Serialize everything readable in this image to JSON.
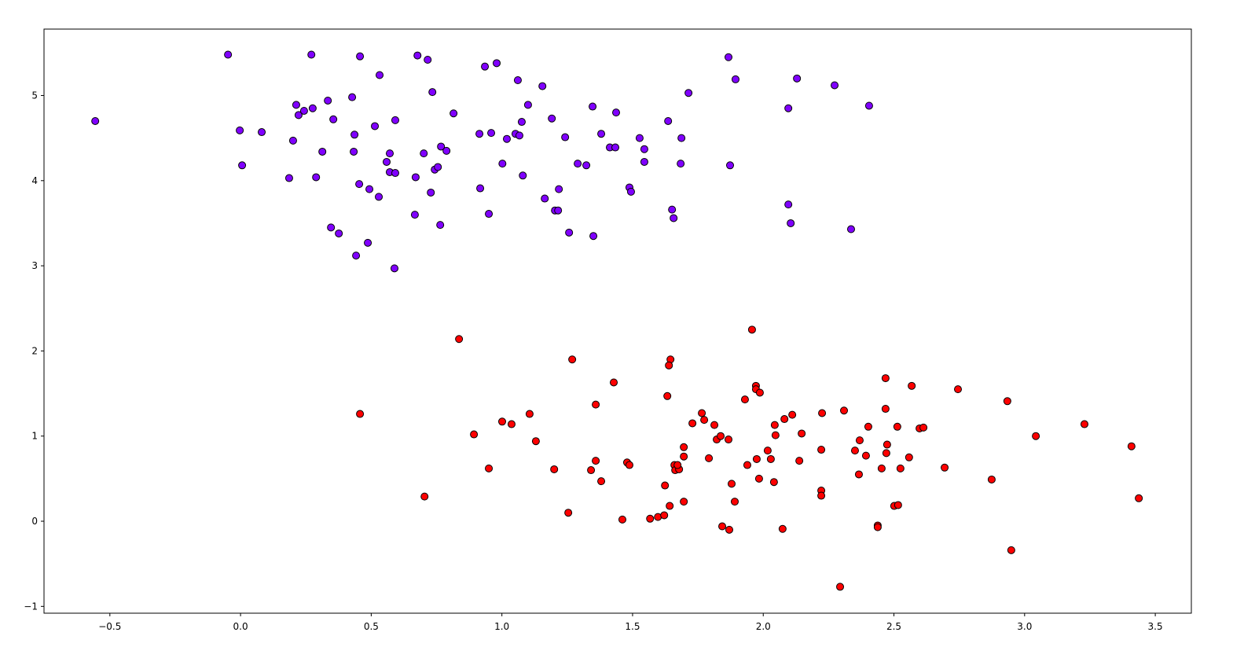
{
  "chart_data": {
    "type": "scatter",
    "xlim": [
      -0.752,
      3.638
    ],
    "ylim": [
      -1.08,
      5.78
    ],
    "xticks": [
      {
        "value": -0.5,
        "label": "−0.5"
      },
      {
        "value": 0.0,
        "label": "0.0"
      },
      {
        "value": 0.5,
        "label": "0.5"
      },
      {
        "value": 1.0,
        "label": "1.0"
      },
      {
        "value": 1.5,
        "label": "1.5"
      },
      {
        "value": 2.0,
        "label": "2.0"
      },
      {
        "value": 2.5,
        "label": "2.5"
      },
      {
        "value": 3.0,
        "label": "3.0"
      },
      {
        "value": 3.5,
        "label": "3.5"
      }
    ],
    "yticks": [
      {
        "value": -1,
        "label": "−1"
      },
      0,
      1,
      2,
      3,
      4,
      5
    ],
    "series": [
      {
        "color": "#8000ff",
        "x": [
          -0.556,
          -0.048,
          0.271,
          0.457,
          0.677,
          0.716,
          0.98,
          0.935,
          0.532,
          1.061,
          1.155,
          0.734,
          -0.003,
          0.081,
          0.006,
          0.201,
          0.213,
          0.222,
          0.243,
          0.276,
          0.334,
          0.427,
          0.355,
          0.313,
          0.436,
          0.433,
          0.514,
          0.592,
          0.186,
          0.289,
          0.454,
          0.493,
          0.529,
          0.559,
          0.571,
          0.571,
          0.592,
          0.67,
          0.701,
          0.728,
          0.743,
          0.755,
          0.767,
          0.788,
          0.815,
          0.667,
          0.764,
          0.346,
          0.376,
          0.487,
          0.442,
          0.589,
          0.914,
          0.959,
          1.019,
          1.052,
          1.067,
          1.076,
          1.1,
          1.002,
          1.08,
          0.917,
          0.95,
          1.191,
          1.242,
          1.164,
          1.218,
          1.203,
          1.215,
          1.257,
          1.29,
          1.323,
          1.347,
          1.38,
          1.413,
          1.434,
          1.437,
          1.35,
          1.488,
          1.494,
          1.527,
          1.545,
          1.545,
          1.636,
          1.714,
          1.687,
          1.684,
          1.651,
          1.657,
          1.867,
          1.894,
          1.873,
          2.096,
          2.129,
          2.273,
          2.405,
          2.096,
          2.105,
          2.336
        ],
        "y": [
          4.7,
          5.48,
          5.48,
          5.46,
          5.47,
          5.42,
          5.38,
          5.34,
          5.24,
          5.18,
          5.11,
          5.04,
          4.59,
          4.57,
          4.18,
          4.47,
          4.89,
          4.77,
          4.82,
          4.85,
          4.94,
          4.98,
          4.72,
          4.34,
          4.54,
          4.34,
          4.64,
          4.71,
          4.03,
          4.04,
          3.96,
          3.9,
          3.81,
          4.22,
          4.32,
          4.1,
          4.09,
          4.04,
          4.32,
          3.86,
          4.13,
          4.16,
          4.4,
          4.35,
          4.79,
          3.6,
          3.48,
          3.45,
          3.38,
          3.27,
          3.12,
          2.97,
          4.55,
          4.56,
          4.49,
          4.55,
          4.53,
          4.69,
          4.89,
          4.2,
          4.06,
          3.91,
          3.61,
          4.73,
          4.51,
          3.79,
          3.9,
          3.65,
          3.65,
          3.39,
          4.2,
          4.18,
          4.87,
          4.55,
          4.39,
          4.39,
          4.8,
          3.35,
          3.92,
          3.87,
          4.5,
          4.37,
          4.22,
          4.7,
          5.03,
          4.5,
          4.2,
          3.66,
          3.56,
          5.45,
          5.19,
          4.18,
          4.85,
          5.2,
          5.12,
          4.88,
          3.72,
          3.5,
          3.43
        ]
      },
      {
        "color": "#ff0000",
        "x": [
          0.836,
          0.457,
          0.704,
          0.893,
          0.95,
          1.001,
          1.037,
          1.106,
          1.13,
          1.2,
          1.269,
          1.254,
          1.359,
          1.359,
          1.341,
          1.38,
          1.428,
          1.461,
          1.479,
          1.488,
          1.567,
          1.597,
          1.621,
          1.624,
          1.642,
          1.633,
          1.645,
          1.639,
          1.66,
          1.663,
          1.678,
          1.672,
          1.696,
          1.696,
          1.696,
          1.729,
          1.765,
          1.774,
          1.792,
          1.813,
          1.822,
          1.837,
          1.867,
          1.843,
          1.87,
          1.879,
          1.891,
          1.93,
          1.939,
          1.957,
          1.972,
          1.972,
          1.987,
          1.975,
          1.984,
          2.017,
          2.029,
          2.041,
          2.047,
          2.044,
          2.074,
          2.081,
          2.111,
          2.138,
          2.147,
          2.222,
          2.222,
          2.225,
          2.222,
          2.294,
          2.309,
          2.351,
          2.366,
          2.369,
          2.393,
          2.402,
          2.438,
          2.438,
          2.453,
          2.468,
          2.468,
          2.471,
          2.474,
          2.501,
          2.516,
          2.513,
          2.525,
          2.558,
          2.568,
          2.598,
          2.613,
          2.694,
          2.745,
          2.874,
          2.934,
          2.949,
          3.043,
          3.229,
          3.409,
          3.437
        ],
        "y": [
          2.14,
          1.26,
          0.29,
          1.02,
          0.62,
          1.17,
          1.14,
          1.26,
          0.94,
          0.61,
          1.9,
          0.1,
          1.37,
          0.71,
          0.6,
          0.47,
          1.63,
          0.02,
          0.69,
          0.66,
          0.03,
          0.05,
          0.07,
          0.42,
          0.18,
          1.47,
          1.9,
          1.83,
          0.66,
          0.6,
          0.61,
          0.66,
          0.87,
          0.76,
          0.23,
          1.15,
          1.27,
          1.19,
          0.74,
          1.13,
          0.96,
          1.0,
          0.96,
          -0.06,
          -0.1,
          0.44,
          0.23,
          1.43,
          0.66,
          2.25,
          1.59,
          1.55,
          1.51,
          0.73,
          0.5,
          0.83,
          0.73,
          0.46,
          1.01,
          1.13,
          -0.09,
          1.2,
          1.25,
          0.71,
          1.03,
          0.36,
          0.3,
          1.27,
          0.84,
          -0.77,
          1.3,
          0.83,
          0.55,
          0.95,
          0.77,
          1.11,
          -0.05,
          -0.07,
          0.62,
          1.32,
          1.68,
          0.8,
          0.9,
          0.18,
          0.19,
          1.11,
          0.62,
          0.75,
          1.59,
          1.09,
          1.1,
          0.63,
          1.55,
          0.49,
          1.41,
          -0.34,
          1.0,
          1.14,
          0.88,
          0.27
        ]
      }
    ]
  }
}
